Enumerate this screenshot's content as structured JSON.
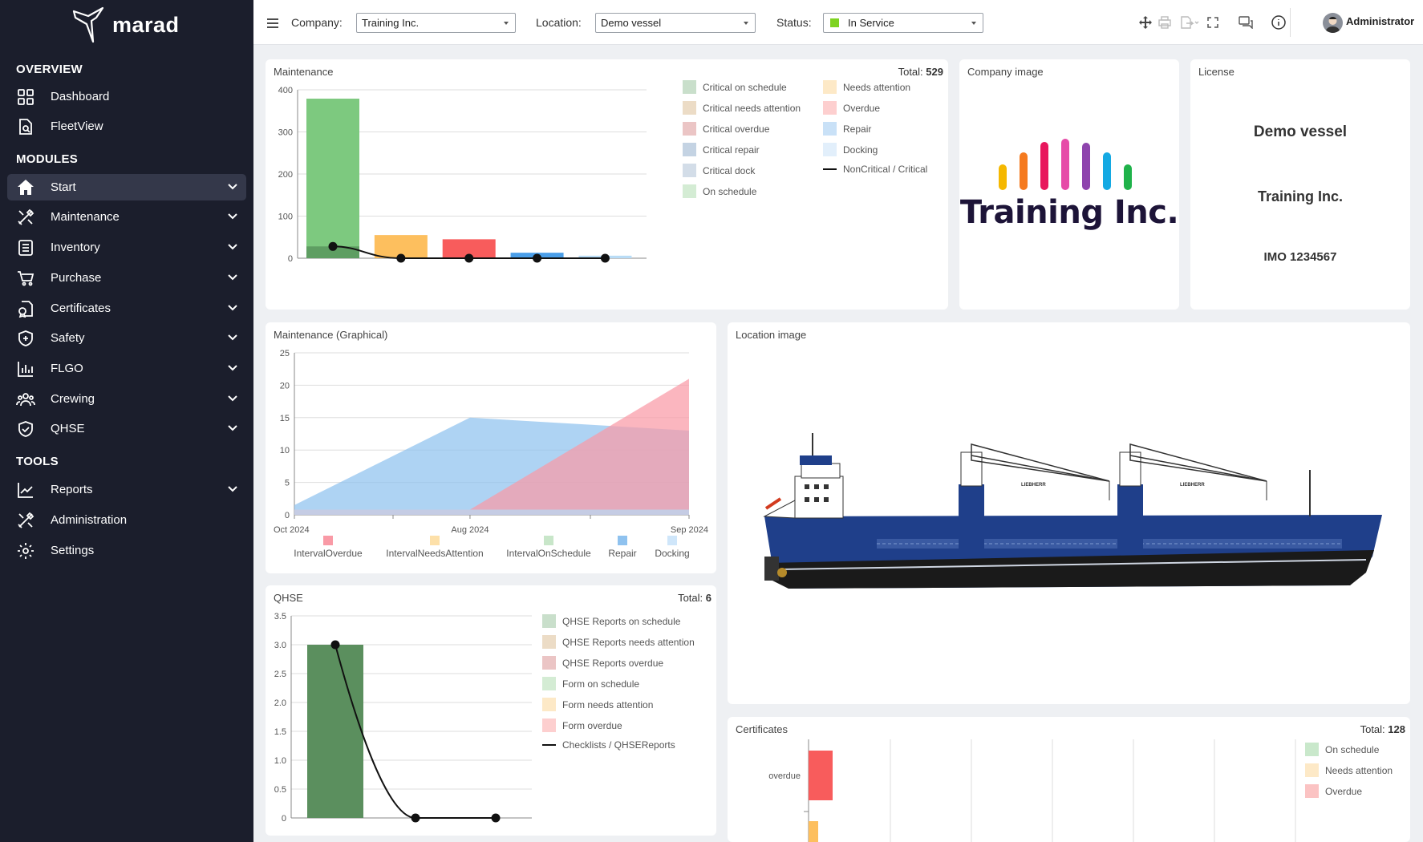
{
  "app": {
    "logo_text": "marad"
  },
  "sidebar": {
    "sections": {
      "overview": "OVERVIEW",
      "modules": "MODULES",
      "tools": "TOOLS"
    },
    "items": [
      {
        "label": "Dashboard",
        "icon": "grid-icon"
      },
      {
        "label": "FleetView",
        "icon": "document-search-icon"
      },
      {
        "label": "Start",
        "icon": "home-icon",
        "active": true
      },
      {
        "label": "Maintenance",
        "icon": "tools-icon"
      },
      {
        "label": "Inventory",
        "icon": "list-icon"
      },
      {
        "label": "Purchase",
        "icon": "cart-icon"
      },
      {
        "label": "Certificates",
        "icon": "certificate-icon"
      },
      {
        "label": "Safety",
        "icon": "shield-plus-icon"
      },
      {
        "label": "FLGO",
        "icon": "bar-chart-icon"
      },
      {
        "label": "Crewing",
        "icon": "people-icon"
      },
      {
        "label": "QHSE",
        "icon": "shield-check-icon"
      },
      {
        "label": "Reports",
        "icon": "line-chart-icon"
      },
      {
        "label": "Administration",
        "icon": "tools-icon"
      },
      {
        "label": "Settings",
        "icon": "gear-icon"
      }
    ]
  },
  "topbar": {
    "company_label": "Company:",
    "company_value": "Training Inc.",
    "location_label": "Location:",
    "location_value": "Demo vessel",
    "status_label": "Status:",
    "status_value": "In Service",
    "status_color": "#7ed321",
    "user_name": "Administrator"
  },
  "panels": {
    "maintenance": {
      "title": "Maintenance",
      "total_label": "Total:",
      "total_value": "529"
    },
    "company_image": {
      "title": "Company image",
      "brand_text": "Training Inc."
    },
    "license": {
      "title": "License",
      "vessel": "Demo vessel",
      "company": "Training Inc.",
      "imo": "IMO 1234567"
    },
    "maintenance_graphical": {
      "title": "Maintenance (Graphical)"
    },
    "location_image": {
      "title": "Location image",
      "crane_brand": "LIEBHERR"
    },
    "qhse": {
      "title": "QHSE",
      "total_label": "Total:",
      "total_value": "6"
    },
    "certificates": {
      "title": "Certificates",
      "total_label": "Total:",
      "total_value": "128"
    }
  },
  "chart_data": [
    {
      "id": "maintenance",
      "type": "bar",
      "ylim": [
        0,
        400
      ],
      "yticks": [
        "400",
        "300",
        "200",
        "100",
        "0"
      ],
      "bars": [
        {
          "value": 379,
          "color": "#7dc97f"
        },
        {
          "value": 55,
          "color": "#fdbf5e"
        },
        {
          "value": 45,
          "color": "#f85c5c"
        },
        {
          "value": 13,
          "color": "#4a9ee8"
        },
        {
          "value": 6,
          "color": "#b9dcf6"
        }
      ],
      "critical_bar": {
        "value": 28,
        "color": "#5e9e62"
      },
      "line_values": [
        28,
        0,
        0,
        0,
        0
      ],
      "legend": [
        {
          "label": "Critical on schedule",
          "color": "#c9dfcb"
        },
        {
          "label": "Critical needs attention",
          "color": "#ecdcc6"
        },
        {
          "label": "Critical overdue",
          "color": "#ebc5c5"
        },
        {
          "label": "Critical repair",
          "color": "#c4d3e3"
        },
        {
          "label": "Critical dock",
          "color": "#d3dde8"
        },
        {
          "label": "On schedule",
          "color": "#d4ecd4"
        },
        {
          "label": "Needs attention",
          "color": "#fde9c7"
        },
        {
          "label": "Overdue",
          "color": "#fdcfcf"
        },
        {
          "label": "Repair",
          "color": "#c9e1f7"
        },
        {
          "label": "Docking",
          "color": "#e2effb"
        },
        {
          "label": "NonCritical / Critical",
          "color": "#111111",
          "line": true
        }
      ]
    },
    {
      "id": "maintenance_graphical",
      "type": "area",
      "ylim": [
        0,
        25
      ],
      "yticks": [
        "25",
        "20",
        "15",
        "10",
        "5",
        "0"
      ],
      "x_labels": [
        "Oct 2024",
        "Aug 2024",
        "Sep 2024"
      ],
      "series": [
        {
          "name": "Repair",
          "values": [
            1.5,
            15,
            13
          ],
          "color": "#8fc2ef"
        },
        {
          "name": "IntervalOverdue",
          "values": [
            0.8,
            0.8,
            21
          ],
          "color": "#f99aa6"
        },
        {
          "name": "Docking",
          "values": [
            0.8,
            0.8,
            0.8
          ],
          "color": "#b9d9f4"
        }
      ],
      "legend": [
        {
          "label": "IntervalOverdue",
          "color": "#f99aa6"
        },
        {
          "label": "IntervalNeedsAttention",
          "color": "#fde0a9"
        },
        {
          "label": "IntervalOnSchedule",
          "color": "#c8e6c9"
        },
        {
          "label": "Repair",
          "color": "#8fc2ef"
        },
        {
          "label": "Docking",
          "color": "#cfe6fa"
        }
      ]
    },
    {
      "id": "qhse",
      "type": "bar",
      "ylim": [
        0,
        3.5
      ],
      "yticks": [
        "3.5",
        "3.0",
        "2.5",
        "2.0",
        "1.5",
        "1.0",
        "0.5",
        "0"
      ],
      "bars": [
        {
          "value": 3,
          "color": "#5b8f5e"
        }
      ],
      "line_values": [
        3,
        0,
        0
      ],
      "legend": [
        {
          "label": "QHSE Reports on schedule",
          "color": "#c9dfcb"
        },
        {
          "label": "QHSE Reports needs attention",
          "color": "#ecdcc6"
        },
        {
          "label": "QHSE Reports overdue",
          "color": "#ebc5c5"
        },
        {
          "label": "Form on schedule",
          "color": "#d4ecd4"
        },
        {
          "label": "Form needs attention",
          "color": "#fde9c7"
        },
        {
          "label": "Form overdue",
          "color": "#fdcfcf"
        },
        {
          "label": "Checklists / QHSEReports",
          "color": "#111111",
          "line": true
        }
      ]
    },
    {
      "id": "certificates",
      "type": "bar",
      "orientation": "horizontal",
      "categories": [
        "overdue"
      ],
      "bars": [
        {
          "category": "overdue",
          "value": 5,
          "color": "#f85c5c"
        },
        {
          "category": "",
          "value": 2,
          "color": "#fdbf5e"
        }
      ],
      "legend": [
        {
          "label": "On schedule",
          "color": "#c9e8cb"
        },
        {
          "label": "Needs attention",
          "color": "#fde9c7"
        },
        {
          "label": "Overdue",
          "color": "#fbc3c3"
        }
      ]
    }
  ]
}
